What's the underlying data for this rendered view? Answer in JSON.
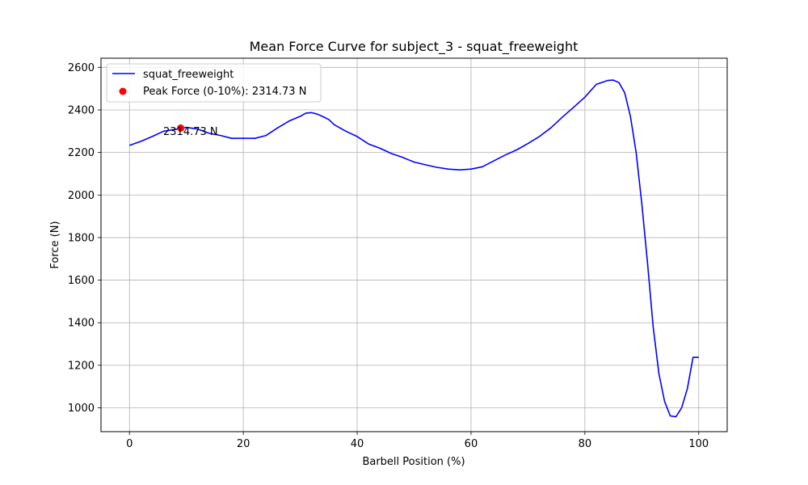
{
  "chart_data": {
    "type": "line",
    "title": "Mean Force Curve for subject_3 - squat_freeweight",
    "xlabel": "Barbell Position (%)",
    "ylabel": "Force (N)",
    "xlim": [
      -5,
      105
    ],
    "ylim": [
      888,
      2643
    ],
    "xticks": [
      0,
      20,
      40,
      60,
      80,
      100
    ],
    "yticks": [
      1000,
      1200,
      1400,
      1600,
      1800,
      2000,
      2200,
      2400,
      2600
    ],
    "grid": true,
    "legend_position": "top-left",
    "series": [
      {
        "name": "squat_freeweight",
        "color": "#0000ff",
        "x": [
          0,
          2,
          4,
          6,
          8,
          10,
          12,
          14,
          16,
          18,
          20,
          22,
          24,
          26,
          28,
          30,
          31,
          32,
          33,
          34,
          35,
          36,
          38,
          40,
          42,
          44,
          46,
          48,
          50,
          52,
          54,
          56,
          58,
          60,
          62,
          64,
          66,
          68,
          70,
          72,
          74,
          76,
          78,
          80,
          82,
          84,
          85,
          86,
          87,
          88,
          89,
          90,
          91,
          92,
          93,
          94,
          95,
          96,
          97,
          98,
          99,
          100
        ],
        "y": [
          2233,
          2252,
          2275,
          2300,
          2308,
          2318,
          2310,
          2290,
          2280,
          2266,
          2267,
          2266,
          2280,
          2315,
          2347,
          2370,
          2385,
          2387,
          2380,
          2368,
          2355,
          2330,
          2300,
          2275,
          2240,
          2220,
          2195,
          2177,
          2155,
          2142,
          2130,
          2122,
          2118,
          2122,
          2133,
          2160,
          2188,
          2212,
          2242,
          2275,
          2315,
          2365,
          2412,
          2460,
          2520,
          2538,
          2540,
          2528,
          2480,
          2370,
          2200,
          1960,
          1680,
          1380,
          1160,
          1030,
          962,
          958,
          1000,
          1090,
          1237,
          1237
        ]
      }
    ],
    "peak": {
      "name": "Peak Force (0-10%): 2314.73 N",
      "label": "2314.73 N",
      "color": "#ff0000",
      "x": 9,
      "y": 2314.73
    }
  }
}
